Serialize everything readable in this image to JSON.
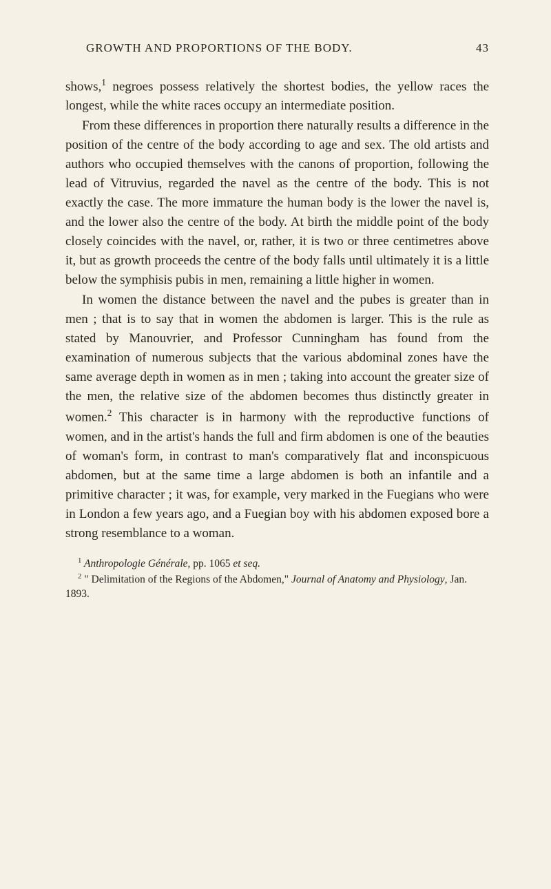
{
  "header": {
    "title": "GROWTH AND PROPORTIONS OF THE BODY.",
    "page_number": "43"
  },
  "paragraphs": {
    "p1_start": "shows,",
    "p1_sup": "1",
    "p1_rest": " negroes possess relatively the shortest bodies, the yellow races the longest, while the white races occupy an intermediate position.",
    "p2": "From these differences in proportion there naturally results a difference in the position of the centre of the body according to age and sex. The old artists and authors who occupied themselves with the canons of proportion, following the lead of Vitruvius, regarded the navel as the centre of the body. This is not exactly the case. The more immature the human body is the lower the navel is, and the lower also the centre of the body. At birth the middle point of the body closely coincides with the navel, or, rather, it is two or three centimetres above it, but as growth proceeds the centre of the body falls until ultimately it is a little below the symphisis pubis in men, remaining a little higher in women.",
    "p3_a": "In women the distance between the navel and the pubes is greater than in men ; that is to say that in women the abdomen is larger. This is the rule as stated by Manouvrier, and Professor Cunningham has found from the examination of numerous subjects that the various abdominal zones have the same average depth in women as in men ; taking into account the greater size of the men, the relative size of the abdomen becomes thus distinctly greater in women.",
    "p3_sup": "2",
    "p3_b": " This character is in harmony with the reproductive functions of women, and in the artist's hands the full and firm abdomen is one of the beauties of woman's form, in contrast to man's comparatively flat and inconspicuous abdomen, but at the same time a large abdomen is both an infantile and a primitive character ; it was, for example, very marked in the Fuegians who were in London a few years ago, and a Fuegian boy with his abdomen exposed bore a strong resemblance to a woman."
  },
  "footnotes": {
    "f1_sup": "1",
    "f1_italic": " Anthropologie Générale",
    "f1_rest_a": ", pp. 1065 ",
    "f1_italic_b": "et seq.",
    "f2_sup": "2",
    "f2_a": " \" Delimitation of the Regions of the Abdomen,\" ",
    "f2_italic": "Journal of Anatomy and Physiology",
    "f2_b": ", Jan. 1893."
  },
  "colors": {
    "background": "#f5f1e6",
    "text": "#2a2520"
  },
  "typography": {
    "body_fontsize": 19,
    "header_fontsize": 17,
    "footnote_fontsize": 15.5,
    "line_height": 1.48,
    "font_family": "Georgia, 'Times New Roman', serif"
  }
}
